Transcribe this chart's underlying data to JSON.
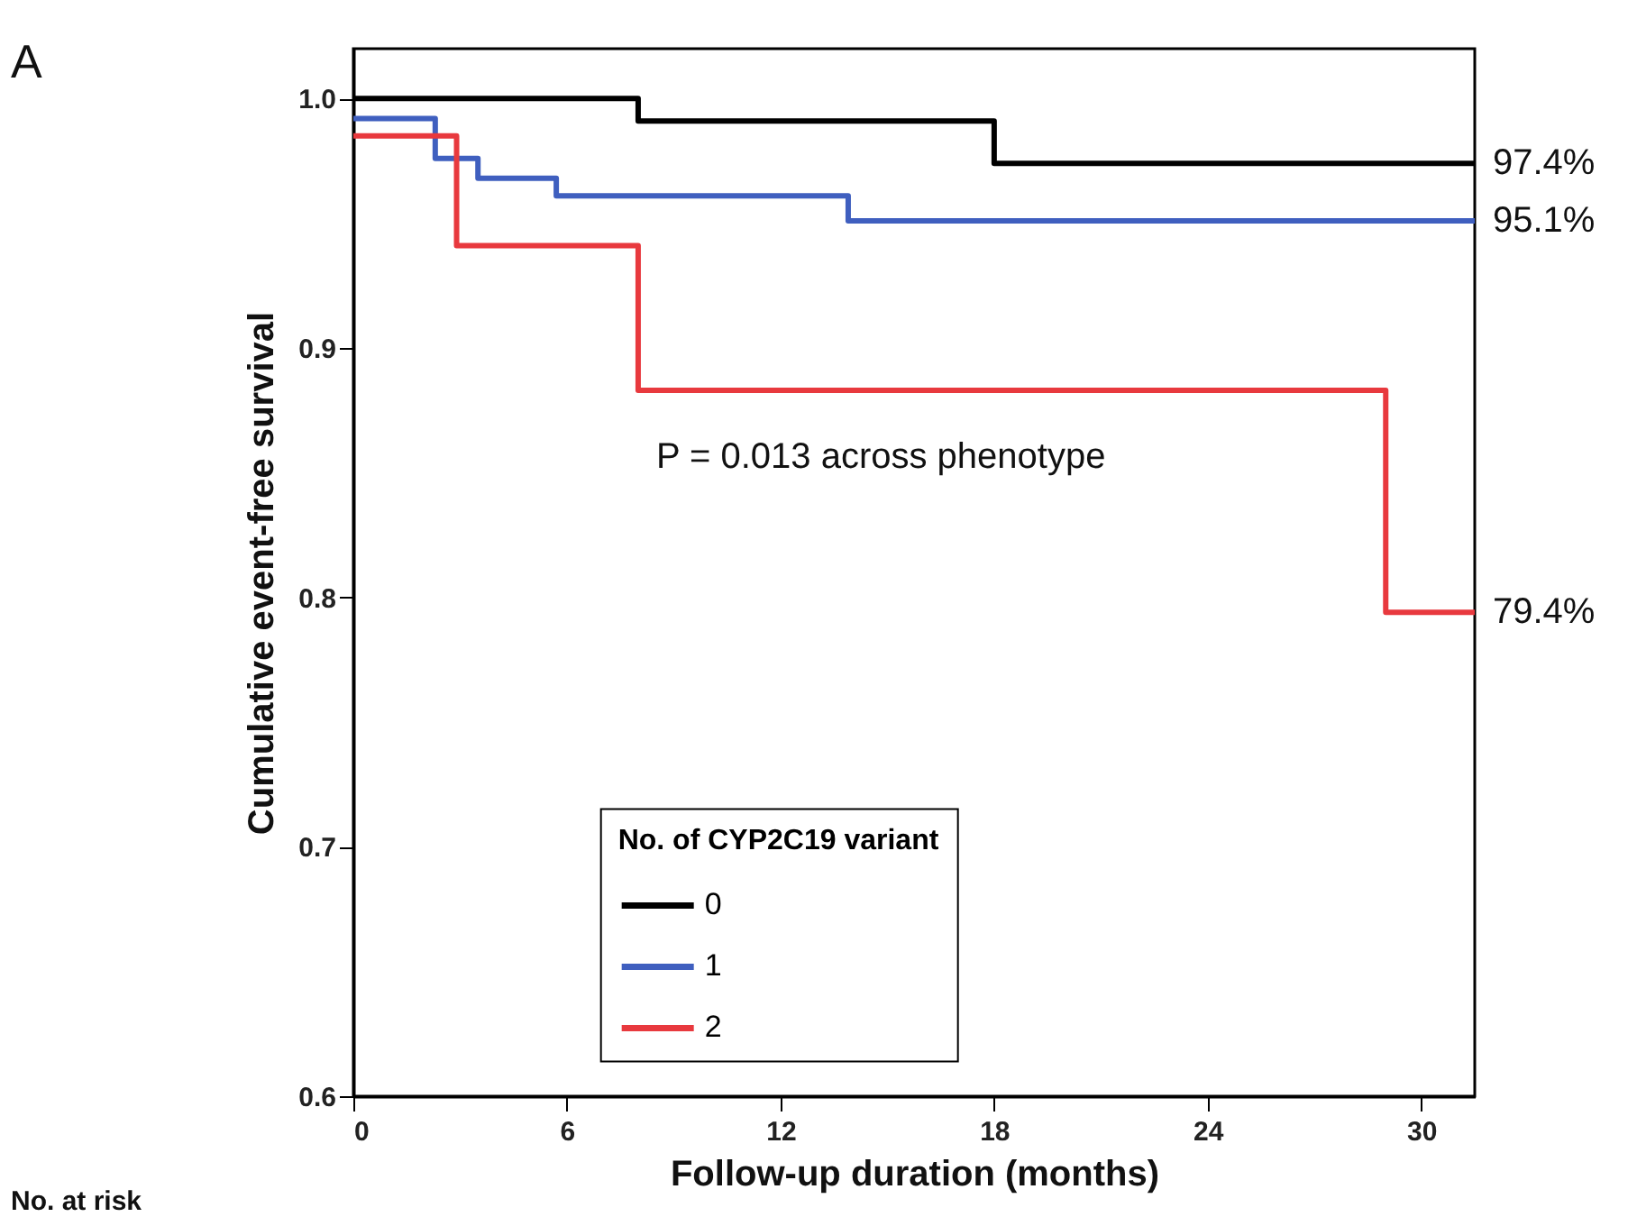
{
  "chart_data": {
    "type": "step",
    "xlabel": "Follow-up duration (months)",
    "ylabel": "Cumulative event-free survival",
    "legend_title": "No. of CYP2C19 variant",
    "xlim": [
      0,
      31.5
    ],
    "ylim": [
      0.6,
      1.02
    ],
    "xticks": [
      0,
      6,
      12,
      18,
      24,
      30
    ],
    "yticks": [
      {
        "value": 0.6,
        "label": "0.6"
      },
      {
        "value": 0.7,
        "label": "0.7"
      },
      {
        "value": 0.8,
        "label": "0.8"
      },
      {
        "value": 0.9,
        "label": "0.9"
      },
      {
        "value": 1,
        "label": "1.0"
      }
    ],
    "grid": false,
    "legend": "bottom",
    "marker": "none",
    "line_style": "solid",
    "series": [
      {
        "name": "0",
        "color": "#000000",
        "x": [
          0,
          8,
          18,
          31.5
        ],
        "values": [
          1.0,
          0.991,
          0.974,
          0.974
        ]
      },
      {
        "name": "1",
        "color": "#3f5fbf",
        "x": [
          0,
          2.3,
          3.5,
          5.7,
          13.9,
          31.5
        ],
        "values": [
          0.992,
          0.976,
          0.968,
          0.961,
          0.951,
          0.951
        ]
      },
      {
        "name": "2",
        "color": "#e8393e",
        "x": [
          0,
          2.9,
          8,
          29,
          31.5
        ],
        "values": [
          0.985,
          0.941,
          0.883,
          0.794,
          0.794
        ]
      }
    ],
    "annotations": [
      "97.4%",
      "95.1%",
      "79.4%",
      "P = 0.013 across  phenotype",
      "A",
      "No. at risk"
    ]
  }
}
